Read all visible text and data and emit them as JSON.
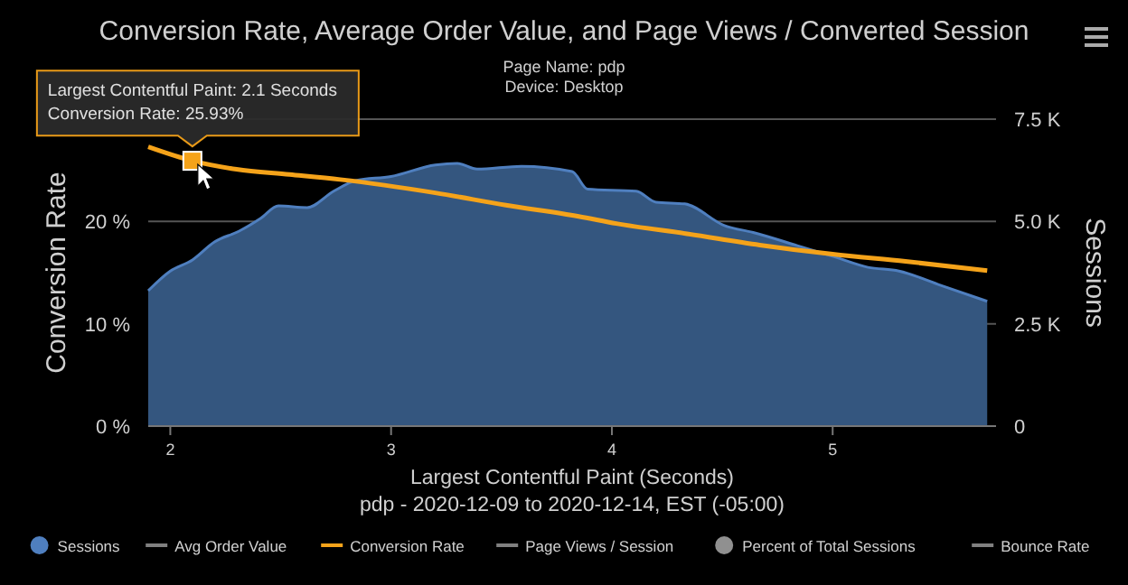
{
  "chart_data": {
    "type": "area",
    "title": "Conversion Rate, Average Order Value, and Page Views / Converted Session",
    "subtitle": "Page Name: pdp\nDevice: Desktop",
    "xlabel": "Largest Contentful Paint (Seconds)",
    "ylabel": "Conversion Rate",
    "y2label": "Sessions",
    "annotations": [
      "pdp - 2020-12-09 to 2020-12-14, EST (-05:00)",
      {
        "text": "Largest Contentful Paint: 2.1 Seconds\nConversion Rate: 25.93%",
        "x": 2.1,
        "y": 25.93
      }
    ],
    "xlim": [
      1.9,
      5.74
    ],
    "xticks": [
      2,
      3,
      4,
      5
    ],
    "ylim": [
      0,
      30
    ],
    "yticks": [
      {
        "value": 0,
        "label": "0 %"
      },
      {
        "value": 10,
        "label": "10 %"
      },
      {
        "value": 20,
        "label": "20 %"
      },
      {
        "value": 30,
        "label": null
      }
    ],
    "y2lim": [
      0,
      7500
    ],
    "y2ticks": [
      0,
      {
        "value": 2500,
        "label": "2.5 K"
      },
      {
        "value": 5000,
        "label": "5.0 K"
      },
      {
        "value": 7500,
        "label": "7.5 K"
      }
    ],
    "grid": "y",
    "legend": "bottom",
    "series": [
      {
        "name": "Sessions",
        "axis": "y2",
        "color": "#34567f",
        "x": [
          1.9,
          2.0,
          2.1,
          2.2,
          2.31,
          2.41,
          2.49,
          2.62,
          2.74,
          2.84,
          3.0,
          3.2,
          3.3,
          3.39,
          3.59,
          3.82,
          3.89,
          4.11,
          4.2,
          4.33,
          4.51,
          4.64,
          4.84,
          5.0,
          5.16,
          5.3,
          5.49,
          5.7
        ],
        "values": [
          3310,
          3790,
          4060,
          4500,
          4760,
          5080,
          5380,
          5340,
          5740,
          6000,
          6100,
          6380,
          6420,
          6280,
          6350,
          6220,
          5790,
          5740,
          5470,
          5430,
          4900,
          4730,
          4410,
          4150,
          3880,
          3790,
          3440,
          3050
        ]
      },
      {
        "name": "Avg Order Value",
        "type": "line",
        "color": "#808080"
      },
      {
        "name": "Conversion Rate",
        "type": "line",
        "axis": "y",
        "color": "#f5a31a",
        "x": [
          1.9,
          2.1,
          2.3,
          2.54,
          2.77,
          3.2,
          3.52,
          3.85,
          4.02,
          4.34,
          4.67,
          5.0,
          5.33,
          5.7
        ],
        "values": [
          27.3,
          25.93,
          25.1,
          24.6,
          24.1,
          22.8,
          21.6,
          20.5,
          19.8,
          18.8,
          17.7,
          16.8,
          16.1,
          15.2
        ]
      },
      {
        "name": "Page Views / Session",
        "type": "line",
        "color": "#808080"
      },
      {
        "name": "Percent of Total Sessions",
        "type": "scatter",
        "color": "#909090"
      },
      {
        "name": "Bounce Rate",
        "type": "line",
        "color": "#808080"
      }
    ]
  }
}
